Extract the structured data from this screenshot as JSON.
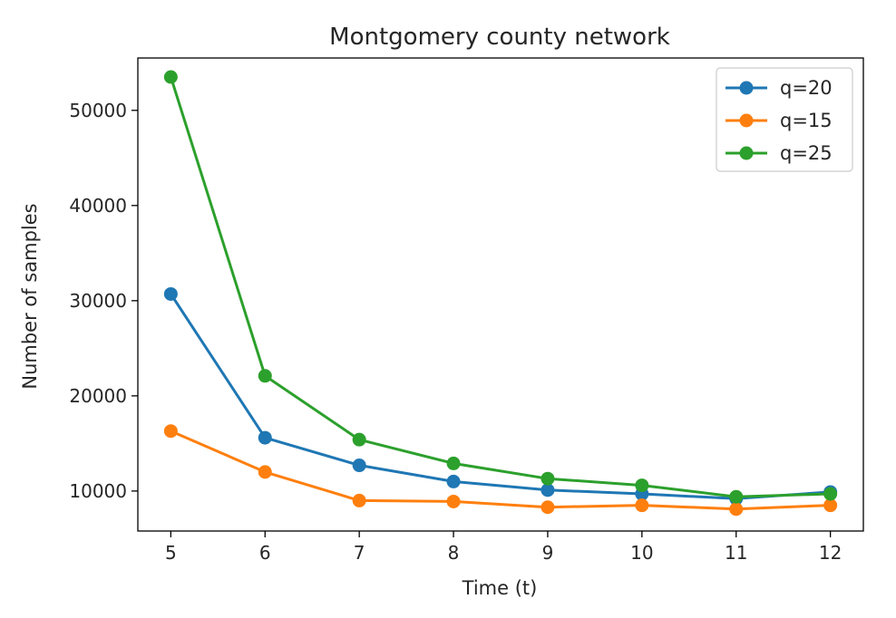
{
  "chart_data": {
    "type": "line",
    "title": "Montgomery county network",
    "xlabel": "Time (t)",
    "ylabel": "Number of samples",
    "x": [
      5,
      6,
      7,
      8,
      9,
      10,
      11,
      12
    ],
    "xticks": [
      "5",
      "6",
      "7",
      "8",
      "9",
      "10",
      "11",
      "12"
    ],
    "yticks": [
      "10000",
      "20000",
      "30000",
      "40000",
      "50000"
    ],
    "xlim": [
      4.65,
      12.35
    ],
    "ylim": [
      5800,
      55500
    ],
    "grid": false,
    "legend_position": "top-right",
    "series": [
      {
        "name": "q=20",
        "color": "#1f77b4",
        "marker": "circle",
        "values": [
          30700,
          15600,
          12700,
          11000,
          10100,
          9700,
          9200,
          9900
        ]
      },
      {
        "name": "q=15",
        "color": "#ff7f0e",
        "marker": "circle",
        "values": [
          16300,
          12000,
          9000,
          8900,
          8300,
          8500,
          8100,
          8500
        ]
      },
      {
        "name": "q=25",
        "color": "#2ca02c",
        "marker": "circle",
        "values": [
          53500,
          22100,
          15400,
          12900,
          11300,
          10600,
          9400,
          9700
        ]
      }
    ]
  }
}
